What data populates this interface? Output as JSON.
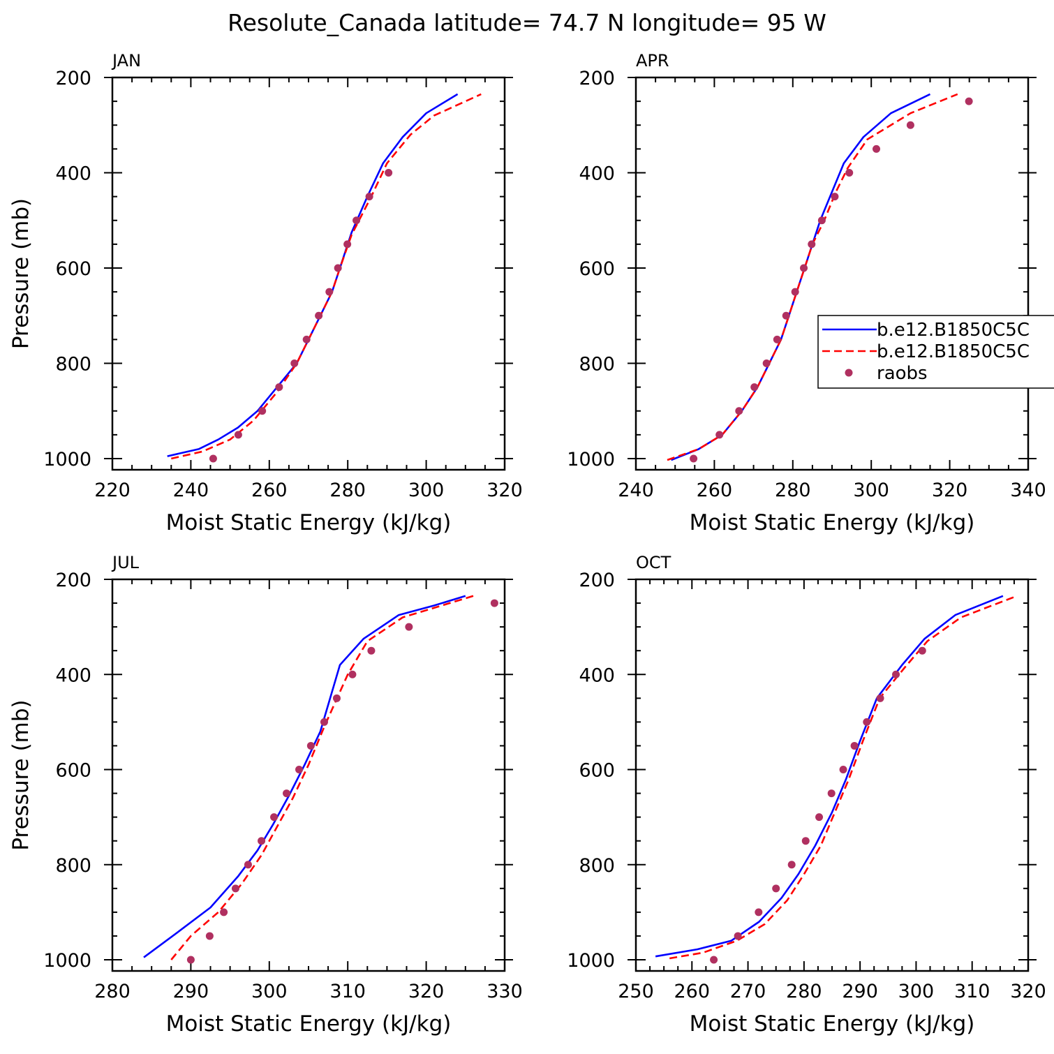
{
  "title": "Resolute_Canada  latitude= 74.7 N longitude= 95 W",
  "colors": {
    "model1": "#0000ff",
    "model2": "#ff0000",
    "raobs": "#b03060"
  },
  "legend": {
    "placement": "right of APR panel",
    "entries": [
      {
        "label": "b.e12.B1850C5C",
        "style": "solid-line",
        "color": "#0000ff"
      },
      {
        "label": "b.e12.B1850C5C",
        "style": "dashed-line",
        "color": "#ff0000"
      },
      {
        "label": "raobs",
        "style": "dot",
        "color": "#b03060"
      }
    ]
  },
  "chart_data": [
    {
      "type": "line",
      "panel_label": "JAN",
      "xlabel": "Moist Static Energy (kJ/kg)",
      "ylabel": "Pressure (mb)",
      "xlim": [
        220,
        320
      ],
      "ylim": [
        1000,
        200
      ],
      "xticks": [
        220,
        240,
        260,
        280,
        300,
        320
      ],
      "yticks": [
        200,
        400,
        600,
        800,
        1000
      ],
      "series": [
        {
          "name": "b.e12.B1850C5C",
          "style": "solid",
          "color": "#0000ff",
          "x": [
            234,
            242,
            247,
            252,
            257,
            262,
            267,
            270,
            273,
            276,
            278,
            281,
            285,
            289,
            294,
            300,
            308
          ],
          "y": [
            995,
            980,
            960,
            935,
            900,
            850,
            800,
            750,
            700,
            650,
            600,
            525,
            450,
            380,
            325,
            275,
            235
          ]
        },
        {
          "name": "b.e12.B1850C5C",
          "style": "dashed",
          "color": "#ff0000",
          "x": [
            235,
            243,
            250,
            256,
            262,
            267,
            270,
            273,
            276,
            278,
            281,
            286,
            290,
            296,
            302,
            314
          ],
          "y": [
            1000,
            985,
            960,
            920,
            860,
            800,
            750,
            700,
            650,
            600,
            530,
            450,
            380,
            320,
            280,
            235
          ]
        },
        {
          "name": "raobs",
          "style": "dot",
          "color": "#b03060",
          "x": [
            245.7,
            252.1,
            258.2,
            262.5,
            266.4,
            269.5,
            272.6,
            275.3,
            277.5,
            279.9,
            282.2,
            285.5,
            290.4
          ],
          "y": [
            1000,
            950,
            900,
            850,
            800,
            750,
            700,
            650,
            600,
            550,
            500,
            450,
            400
          ]
        }
      ]
    },
    {
      "type": "line",
      "panel_label": "APR",
      "xlabel": "Moist Static Energy (kJ/kg)",
      "ylabel": "",
      "xlim": [
        240,
        340
      ],
      "ylim": [
        1000,
        200
      ],
      "xticks": [
        240,
        260,
        280,
        300,
        320,
        340
      ],
      "yticks": [
        200,
        400,
        600,
        800,
        1000
      ],
      "series": [
        {
          "name": "b.e12.B1850C5C",
          "style": "solid",
          "color": "#0000ff",
          "x": [
            249,
            256,
            262,
            267,
            271,
            274,
            277,
            279,
            281,
            283,
            285,
            287,
            290,
            293,
            298,
            305,
            315
          ],
          "y": [
            1003,
            980,
            950,
            900,
            850,
            800,
            750,
            700,
            650,
            600,
            550,
            500,
            440,
            380,
            325,
            275,
            235
          ]
        },
        {
          "name": "b.e12.B1850C5C",
          "style": "dashed",
          "color": "#ff0000",
          "x": [
            248,
            256,
            262,
            267,
            271,
            274,
            277,
            279,
            281,
            283,
            285,
            288,
            291,
            294,
            299,
            310,
            322
          ],
          "y": [
            1003,
            980,
            950,
            900,
            850,
            800,
            750,
            700,
            650,
            600,
            550,
            500,
            440,
            390,
            330,
            275,
            235
          ]
        },
        {
          "name": "raobs",
          "style": "dot",
          "color": "#b03060",
          "x": [
            254.7,
            261.3,
            266.3,
            270.2,
            273.3,
            276.0,
            278.3,
            280.6,
            282.8,
            284.8,
            287.4,
            290.7,
            294.4,
            301.3,
            310.0,
            324.9
          ],
          "y": [
            1000,
            950,
            900,
            850,
            800,
            750,
            700,
            650,
            600,
            550,
            500,
            450,
            400,
            350,
            300,
            250
          ]
        }
      ]
    },
    {
      "type": "line",
      "panel_label": "JUL",
      "xlabel": "Moist Static Energy (kJ/kg)",
      "ylabel": "Pressure (mb)",
      "xlim": [
        280,
        330
      ],
      "ylim": [
        1000,
        200
      ],
      "xticks": [
        280,
        290,
        300,
        310,
        320,
        330
      ],
      "yticks": [
        200,
        400,
        600,
        800,
        1000
      ],
      "series": [
        {
          "name": "b.e12.B1850C5C",
          "style": "solid",
          "color": "#0000ff",
          "x": [
            284,
            288.5,
            292.5,
            296,
            298.5,
            300.5,
            302.5,
            304.5,
            306.5,
            309,
            312,
            316.5,
            321,
            325
          ],
          "y": [
            995,
            940,
            890,
            825,
            770,
            715,
            655,
            590,
            520,
            380,
            325,
            275,
            255,
            235
          ]
        },
        {
          "name": "b.e12.B1850C5C",
          "style": "dashed",
          "color": "#ff0000",
          "x": [
            287.5,
            290,
            293.5,
            296.5,
            299,
            301,
            303,
            305,
            307,
            310,
            312.5,
            317,
            321,
            326
          ],
          "y": [
            1000,
            950,
            900,
            840,
            780,
            720,
            660,
            590,
            510,
            400,
            330,
            280,
            260,
            235
          ]
        },
        {
          "name": "raobs",
          "style": "dot",
          "color": "#b03060",
          "x": [
            290.0,
            292.4,
            294.2,
            295.7,
            297.3,
            299.0,
            300.6,
            302.2,
            303.8,
            305.3,
            307.0,
            308.6,
            310.6,
            313.0,
            317.8,
            328.7
          ],
          "y": [
            1000,
            950,
            900,
            850,
            800,
            750,
            700,
            650,
            600,
            550,
            500,
            450,
            400,
            350,
            300,
            250
          ]
        }
      ]
    },
    {
      "type": "line",
      "panel_label": "OCT",
      "xlabel": "Moist Static Energy (kJ/kg)",
      "ylabel": "",
      "xlim": [
        250,
        320
      ],
      "ylim": [
        1000,
        200
      ],
      "xticks": [
        250,
        260,
        270,
        280,
        290,
        300,
        310,
        320
      ],
      "yticks": [
        200,
        400,
        600,
        800,
        1000
      ],
      "series": [
        {
          "name": "b.e12.B1850C5C",
          "style": "solid",
          "color": "#0000ff",
          "x": [
            253.5,
            261,
            267,
            272,
            276,
            279,
            282,
            285,
            287.5,
            290,
            293,
            297.5,
            301.5,
            307,
            315.5
          ],
          "y": [
            993,
            978,
            960,
            920,
            870,
            820,
            760,
            690,
            620,
            540,
            450,
            380,
            325,
            275,
            235
          ]
        },
        {
          "name": "b.e12.B1850C5C",
          "style": "dashed",
          "color": "#ff0000",
          "x": [
            256,
            262,
            268,
            273,
            277,
            280,
            283,
            285.5,
            288,
            290.5,
            293.5,
            298,
            302,
            308,
            318
          ],
          "y": [
            997,
            985,
            960,
            925,
            875,
            820,
            760,
            690,
            620,
            540,
            450,
            385,
            330,
            280,
            235
          ]
        },
        {
          "name": "raobs",
          "style": "dot",
          "color": "#b03060",
          "x": [
            263.9,
            268.2,
            271.9,
            275.0,
            277.8,
            280.3,
            282.7,
            284.9,
            287.0,
            289.0,
            291.2,
            293.6,
            296.4,
            301.1
          ],
          "y": [
            1000,
            950,
            900,
            850,
            800,
            750,
            700,
            650,
            600,
            550,
            500,
            450,
            400,
            350
          ]
        }
      ]
    }
  ]
}
